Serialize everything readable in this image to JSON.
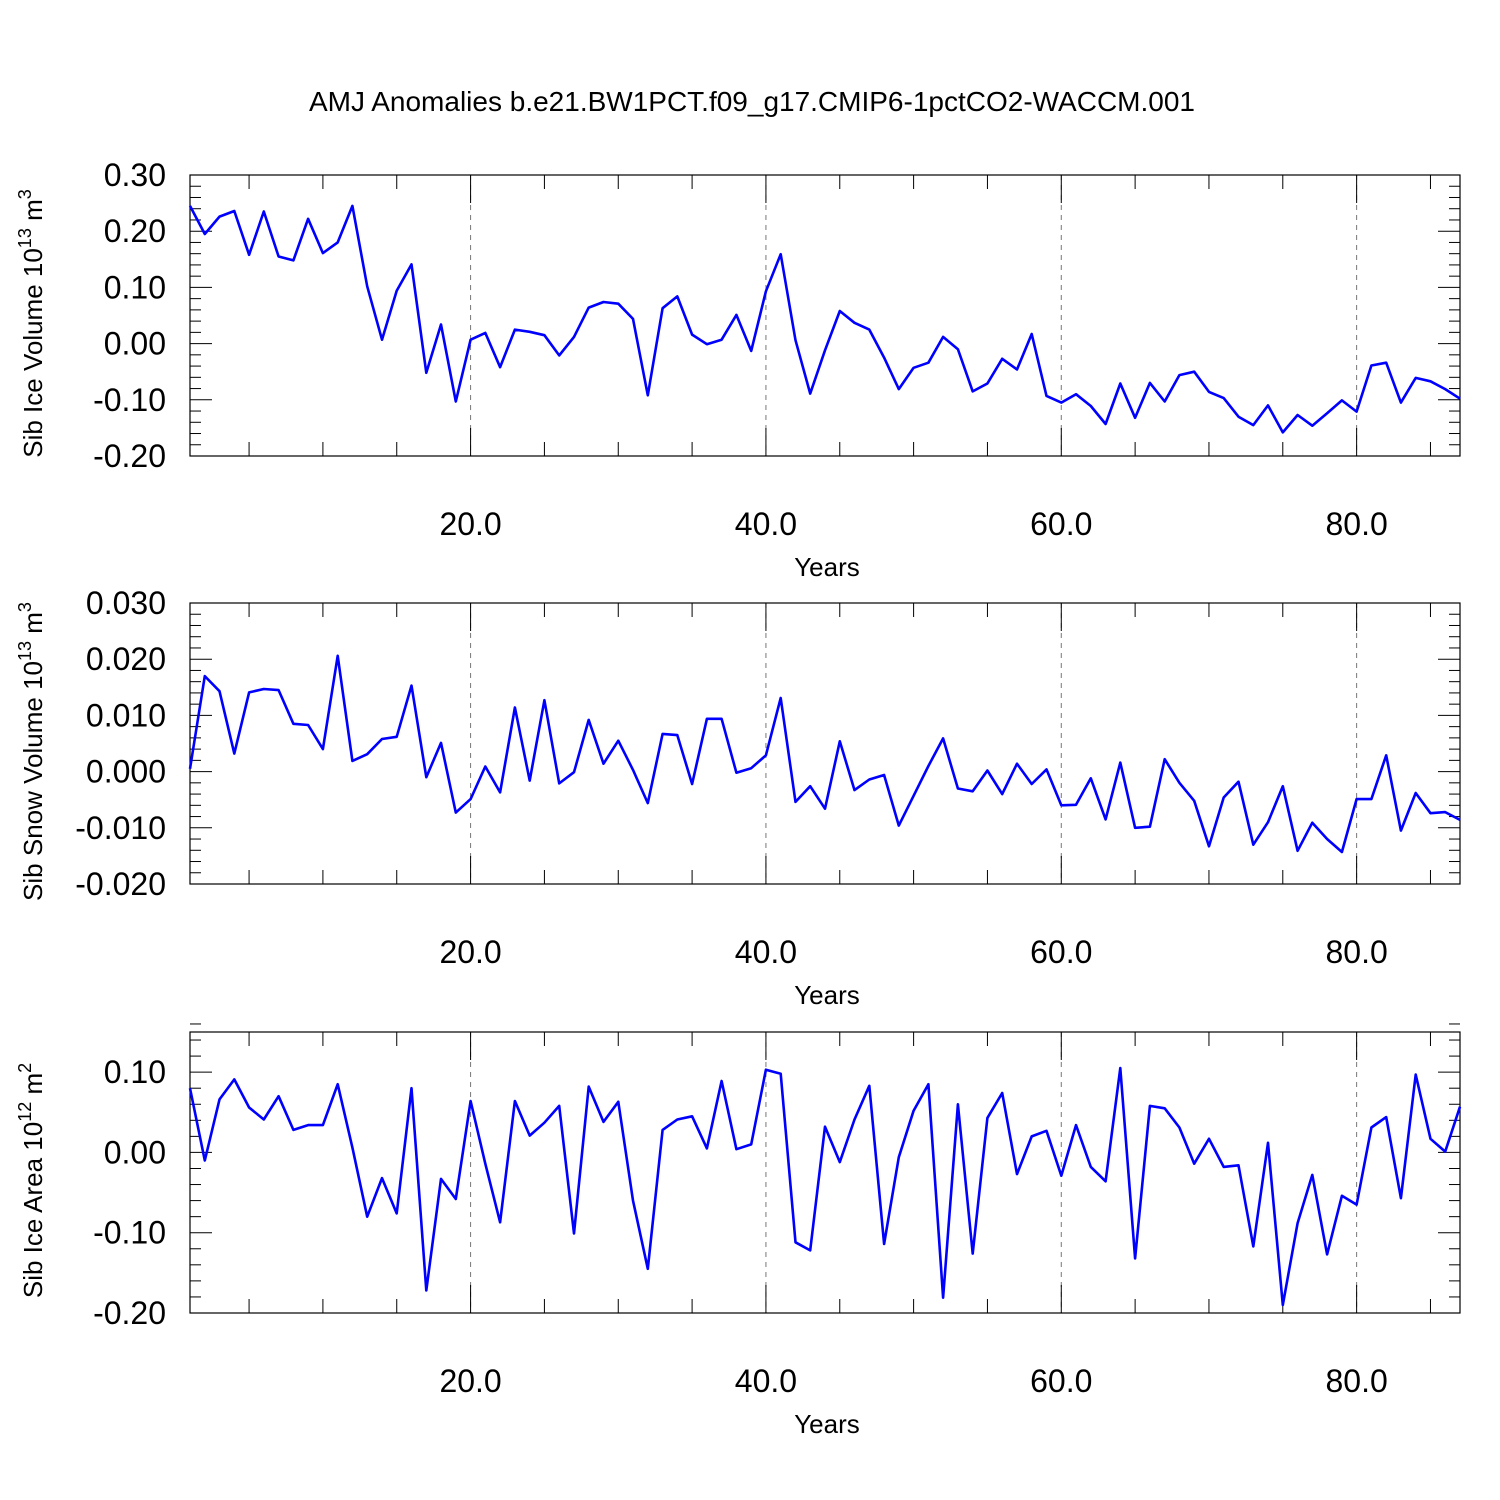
{
  "figure": {
    "title": "AMJ Anomalies b.e21.BW1PCT.f09_g17.CMIP6-1pctCO2-WACCM.001"
  },
  "chart_data": [
    {
      "type": "line",
      "xlabel": "Years",
      "ylabel": "Sib Ice Volume 10",
      "ylabel_exp": "13",
      "ylabel_unit": " m",
      "ylabel_unit_exp": "3",
      "xlim": [
        1,
        87
      ],
      "ylim": [
        -0.2,
        0.3
      ],
      "yticks": [
        0.3,
        0.2,
        0.1,
        0.0,
        -0.1,
        -0.2
      ],
      "ytick_labels": [
        "0.30",
        "0.20",
        "0.10",
        "0.00",
        "-0.10",
        "-0.20"
      ],
      "xticks": [
        20,
        40,
        60,
        80
      ],
      "xtick_labels": [
        "20.0",
        "40.0",
        "60.0",
        "80.0"
      ],
      "grid_x": true,
      "series": [
        {
          "color": "#0000ff",
          "x": [
            1,
            2,
            3,
            4,
            5,
            6,
            7,
            8,
            9,
            10,
            11,
            12,
            13,
            14,
            15,
            16,
            17,
            18,
            19,
            20,
            21,
            22,
            23,
            24,
            25,
            26,
            27,
            28,
            29,
            30,
            31,
            32,
            33,
            34,
            35,
            36,
            37,
            38,
            39,
            40,
            41,
            42,
            43,
            44,
            45,
            46,
            47,
            48,
            49,
            50,
            51,
            52,
            53,
            54,
            55,
            56,
            57,
            58,
            59,
            60,
            61,
            62,
            63,
            64,
            65,
            66,
            67,
            68,
            69,
            70,
            71,
            72,
            73,
            74,
            75,
            76,
            77,
            78,
            79,
            80,
            81,
            82,
            83,
            84,
            85,
            86,
            87
          ],
          "values": [
            0.245,
            0.195,
            0.226,
            0.236,
            0.158,
            0.235,
            0.155,
            0.148,
            0.222,
            0.161,
            0.18,
            0.245,
            0.102,
            0.007,
            0.094,
            0.141,
            -0.052,
            0.034,
            -0.103,
            0.007,
            0.019,
            -0.042,
            0.025,
            0.021,
            0.015,
            -0.021,
            0.012,
            0.064,
            0.074,
            0.071,
            0.044,
            -0.092,
            0.063,
            0.084,
            0.016,
            -0.001,
            0.007,
            0.051,
            -0.013,
            0.093,
            0.159,
            0.006,
            -0.089,
            -0.012,
            0.058,
            0.037,
            0.025,
            -0.025,
            -0.081,
            -0.043,
            -0.034,
            0.012,
            -0.01,
            -0.085,
            -0.071,
            -0.027,
            -0.046,
            0.017,
            -0.093,
            -0.105,
            -0.09,
            -0.111,
            -0.143,
            -0.071,
            -0.132,
            -0.07,
            -0.103,
            -0.056,
            -0.05,
            -0.086,
            -0.097,
            -0.13,
            -0.145,
            -0.11,
            -0.158,
            -0.127,
            -0.146,
            -0.124,
            -0.101,
            -0.121,
            -0.039,
            -0.034,
            -0.105,
            -0.061,
            -0.067,
            -0.081,
            -0.098
          ]
        }
      ]
    },
    {
      "type": "line",
      "xlabel": "Years",
      "ylabel": "Sib Snow Volume 10",
      "ylabel_exp": "13",
      "ylabel_unit": " m",
      "ylabel_unit_exp": "3",
      "xlim": [
        1,
        87
      ],
      "ylim": [
        -0.02,
        0.03
      ],
      "yticks": [
        0.03,
        0.02,
        0.01,
        0.0,
        -0.01,
        -0.02
      ],
      "ytick_labels": [
        "0.030",
        "0.020",
        "0.010",
        "0.000",
        "-0.010",
        "-0.020"
      ],
      "xticks": [
        20,
        40,
        60,
        80
      ],
      "xtick_labels": [
        "20.0",
        "40.0",
        "60.0",
        "80.0"
      ],
      "grid_x": true,
      "series": [
        {
          "color": "#0000ff",
          "x": [
            1,
            2,
            3,
            4,
            5,
            6,
            7,
            8,
            9,
            10,
            11,
            12,
            13,
            14,
            15,
            16,
            17,
            18,
            19,
            20,
            21,
            22,
            23,
            24,
            25,
            26,
            27,
            28,
            29,
            30,
            31,
            32,
            33,
            34,
            35,
            36,
            37,
            38,
            39,
            40,
            41,
            42,
            43,
            44,
            45,
            46,
            47,
            48,
            49,
            50,
            51,
            52,
            53,
            54,
            55,
            56,
            57,
            58,
            59,
            60,
            61,
            62,
            63,
            64,
            65,
            66,
            67,
            68,
            69,
            70,
            71,
            72,
            73,
            74,
            75,
            76,
            77,
            78,
            79,
            80,
            81,
            82,
            83,
            84,
            85,
            86,
            87
          ],
          "values": [
            0.0005,
            0.017,
            0.0143,
            0.0032,
            0.0141,
            0.0147,
            0.0145,
            0.0085,
            0.0083,
            0.004,
            0.0206,
            0.0019,
            0.0031,
            0.0058,
            0.0062,
            0.0153,
            -0.001,
            0.0051,
            -0.0073,
            -0.0049,
            0.0009,
            -0.0037,
            0.0114,
            -0.0016,
            0.0127,
            -0.0021,
            -0.0001,
            0.0092,
            0.0014,
            0.0055,
            0.0003,
            -0.0056,
            0.0067,
            0.0065,
            -0.0022,
            0.0094,
            0.0094,
            -0.0002,
            0.0006,
            0.0029,
            0.0131,
            -0.0054,
            -0.0026,
            -0.0066,
            0.0054,
            -0.0033,
            -0.0014,
            -0.0006,
            -0.0096,
            -0.0043,
            0.001,
            0.0059,
            -0.003,
            -0.0035,
            0.0002,
            -0.004,
            0.0014,
            -0.0022,
            0.0004,
            -0.006,
            -0.0059,
            -0.0012,
            -0.0085,
            0.0016,
            -0.01,
            -0.0098,
            0.0022,
            -0.002,
            -0.0052,
            -0.0133,
            -0.0046,
            -0.0018,
            -0.013,
            -0.009,
            -0.0026,
            -0.0141,
            -0.0091,
            -0.012,
            -0.0143,
            -0.0049,
            -0.0049,
            0.0029,
            -0.0105,
            -0.0038,
            -0.0074,
            -0.0072,
            -0.0086
          ]
        }
      ]
    },
    {
      "type": "line",
      "xlabel": "Years",
      "ylabel": "Sib Ice Area 10",
      "ylabel_exp": "12",
      "ylabel_unit": " m",
      "ylabel_unit_exp": "2",
      "xlim": [
        1,
        87
      ],
      "ylim": [
        -0.2,
        0.15
      ],
      "yticks": [
        0.1,
        0.0,
        -0.1,
        -0.2
      ],
      "ytick_labels": [
        "0.10",
        "0.00",
        "-0.10",
        "-0.20"
      ],
      "xticks": [
        20,
        40,
        60,
        80
      ],
      "xtick_labels": [
        "20.0",
        "40.0",
        "60.0",
        "80.0"
      ],
      "grid_x": true,
      "series": [
        {
          "color": "#0000ff",
          "x": [
            1,
            2,
            3,
            4,
            5,
            6,
            7,
            8,
            9,
            10,
            11,
            12,
            13,
            14,
            15,
            16,
            17,
            18,
            19,
            20,
            21,
            22,
            23,
            24,
            25,
            26,
            27,
            28,
            29,
            30,
            31,
            32,
            33,
            34,
            35,
            36,
            37,
            38,
            39,
            40,
            41,
            42,
            43,
            44,
            45,
            46,
            47,
            48,
            49,
            50,
            51,
            52,
            53,
            54,
            55,
            56,
            57,
            58,
            59,
            60,
            61,
            62,
            63,
            64,
            65,
            66,
            67,
            68,
            69,
            70,
            71,
            72,
            73,
            74,
            75,
            76,
            77,
            78,
            79,
            80,
            81,
            82,
            83,
            84,
            85,
            86,
            87
          ],
          "values": [
            0.08,
            -0.01,
            0.066,
            0.091,
            0.056,
            0.041,
            0.07,
            0.028,
            0.034,
            0.034,
            0.085,
            0.006,
            -0.08,
            -0.032,
            -0.076,
            0.08,
            -0.172,
            -0.033,
            -0.058,
            0.064,
            -0.014,
            -0.087,
            0.064,
            0.021,
            0.037,
            0.058,
            -0.101,
            0.082,
            0.038,
            0.063,
            -0.06,
            -0.145,
            0.028,
            0.041,
            0.045,
            0.005,
            0.089,
            0.004,
            0.01,
            0.103,
            0.098,
            -0.112,
            -0.122,
            0.032,
            -0.012,
            0.041,
            0.083,
            -0.114,
            -0.006,
            0.052,
            0.085,
            -0.181,
            0.06,
            -0.126,
            0.043,
            0.074,
            -0.027,
            0.02,
            0.027,
            -0.029,
            0.034,
            -0.018,
            -0.036,
            0.105,
            -0.132,
            0.058,
            0.055,
            0.031,
            -0.014,
            0.017,
            -0.018,
            -0.016,
            -0.117,
            0.012,
            -0.19,
            -0.088,
            -0.028,
            -0.127,
            -0.054,
            -0.065,
            0.031,
            0.044,
            -0.057,
            0.097,
            0.017,
            0.001,
            0.057
          ]
        }
      ]
    }
  ]
}
